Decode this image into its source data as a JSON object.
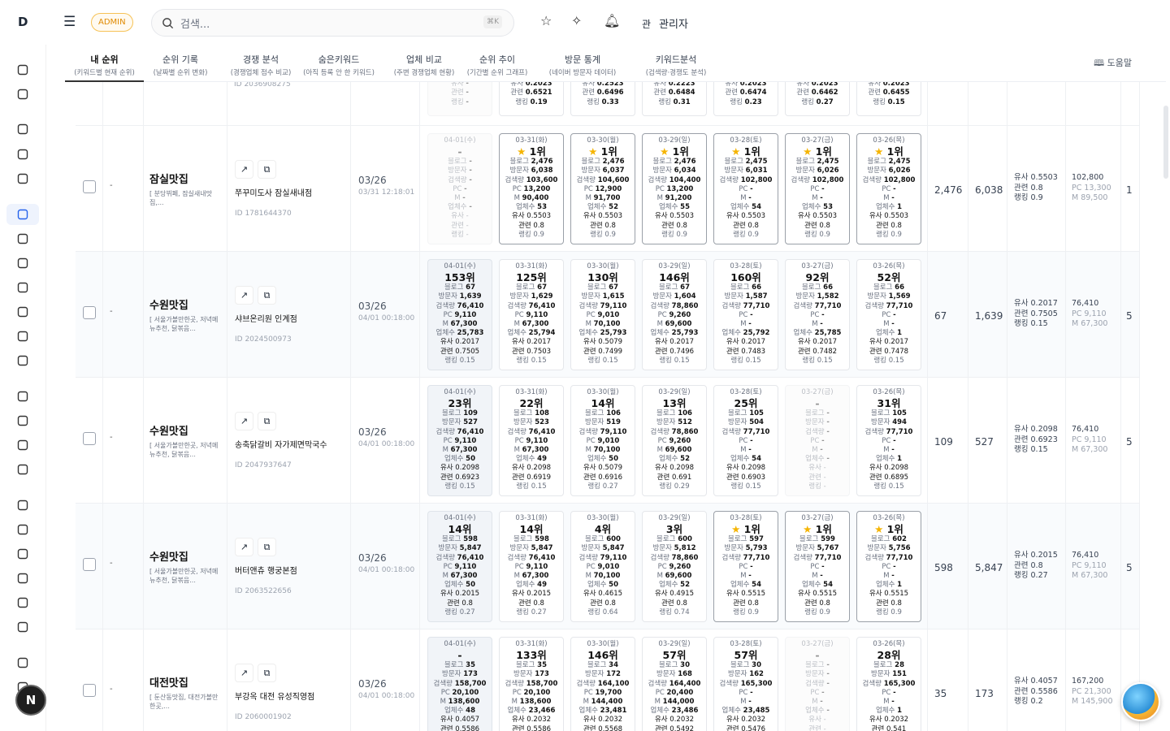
{
  "header": {
    "logo": "D",
    "badge": "ADMIN",
    "search_placeholder": "검색...",
    "shortcut": "⌘K",
    "user_initial": "관",
    "user_name": "관리자",
    "avatar": "N"
  },
  "sidebar_icons": [
    "grid-icon",
    "megaphone-icon",
    "map-check-icon",
    "cart-icon",
    "users-icon",
    "location-pin-icon",
    "document-icon",
    "cart-icon",
    "help-icon",
    "chat-icon",
    "globe-icon",
    "play-icon",
    "bar-chart-icon",
    "shuffle-icon",
    "search-icon",
    "folder-icon",
    "calendar-icon",
    "wallet-icon",
    "line-chart-icon",
    "layers-icon",
    "report-icon",
    "clipboard-icon",
    "scissors-icon",
    "image-icon"
  ],
  "tabs": [
    {
      "label": "내 순위",
      "sub": "(키워드별 현재 순위)"
    },
    {
      "label": "순위 기록",
      "sub": "(날짜별 순위 변화)"
    },
    {
      "label": "경쟁 분석",
      "sub": "(경쟁업체 점수 비교)"
    },
    {
      "label": "숨은키워드",
      "sub": "(아직 등록 안 한 키워드)"
    },
    {
      "label": "업체 비교",
      "sub": "(주변 경쟁업체 현황)"
    },
    {
      "label": "순위 추이",
      "sub": "(기간별 순위 그래프)"
    },
    {
      "label": "방문 통계",
      "sub": "(네이버 방문자 데이터)"
    },
    {
      "label": "키워드분석",
      "sub": "(검색량·경쟁도 분석)"
    }
  ],
  "help_label": "도움말",
  "labels": {
    "blog": "블로그",
    "visitors": "방문자",
    "search": "검색량",
    "pc": "PC",
    "m": "M",
    "biz": "업체수",
    "sim": "유사",
    "rel": "관련",
    "score": "랭킹"
  },
  "partial_row": {
    "place_id": "ID 2036908275",
    "cards": [
      [
        "-",
        "-",
        "-",
        "-"
      ],
      [
        "53",
        "0.2023",
        "0.6521",
        "0.19"
      ],
      [
        "52",
        "0.2523",
        "0.6496",
        "0.33"
      ],
      [
        "55",
        "0.2223",
        "0.6484",
        "0.31"
      ],
      [
        "54",
        "0.2023",
        "0.6474",
        "0.23"
      ],
      [
        "53",
        "0.2023",
        "0.6462",
        "0.27"
      ],
      [
        "1",
        "0.2023",
        "0.6455",
        "0.15"
      ]
    ]
  },
  "rows": [
    {
      "rank": "-",
      "keyword": "잠실맛집",
      "keyword_sub": "[ 분당뷔페, 잠실새내맛집,...",
      "place": "쭈꾸미도사 잠실새내점",
      "place_id": "ID 1781644370",
      "date": "03/26",
      "datetime": "03/31 12:18:01",
      "cards": [
        [
          "04-01(수)",
          "-",
          "-",
          "-",
          "-",
          "-",
          "-",
          "-",
          "-",
          "-",
          "-"
        ],
        [
          "03-31(화)",
          "1위",
          "2,476",
          "6,038",
          "103,600",
          "13,200",
          "90,400",
          "53",
          "0.5503",
          "0.8",
          "0.9"
        ],
        [
          "03-30(월)",
          "1위",
          "2,476",
          "6,037",
          "104,600",
          "12,900",
          "91,700",
          "52",
          "0.5503",
          "0.8",
          "0.9"
        ],
        [
          "03-29(일)",
          "1위",
          "2,476",
          "6,034",
          "104,400",
          "13,200",
          "91,200",
          "55",
          "0.5503",
          "0.8",
          "0.9"
        ],
        [
          "03-28(토)",
          "1위",
          "2,475",
          "6,031",
          "102,800",
          "-",
          "-",
          "54",
          "0.5503",
          "0.8",
          "0.9"
        ],
        [
          "03-27(금)",
          "1위",
          "2,475",
          "6,026",
          "102,800",
          "-",
          "-",
          "53",
          "0.5503",
          "0.8",
          "0.9"
        ],
        [
          "03-26(목)",
          "1위",
          "2,475",
          "6,026",
          "102,800",
          "-",
          "-",
          "1",
          "0.5503",
          "0.8",
          "0.9"
        ]
      ],
      "blog": "2,476",
      "visitors": "6,038",
      "sim": "0.5503",
      "rel": "0.8",
      "score": "0.9",
      "search": "102,800",
      "pc": "13,300",
      "m": "89,500",
      "last": "1"
    },
    {
      "rank": "-",
      "keyword": "수원맛집",
      "keyword_sub": "[ 서울가볼만한곳, 저녁메뉴추천, 닭볶음...",
      "place": "샤브온리원 인계점",
      "place_id": "ID 2024500973",
      "date": "03/26",
      "datetime": "04/01 00:18:00",
      "cards": [
        [
          "04-01(수)",
          "153위",
          "67",
          "1,639",
          "76,410",
          "9,110",
          "67,300",
          "25,783",
          "0.2017",
          "0.7505",
          "0.15"
        ],
        [
          "03-31(화)",
          "125위",
          "67",
          "1,629",
          "76,410",
          "9,110",
          "67,300",
          "25,794",
          "0.2017",
          "0.7503",
          "0.15"
        ],
        [
          "03-30(월)",
          "130위",
          "67",
          "1,615",
          "79,110",
          "9,010",
          "70,100",
          "25,793",
          "0.5079",
          "0.7499",
          "0.15"
        ],
        [
          "03-29(일)",
          "146위",
          "67",
          "1,604",
          "78,860",
          "9,260",
          "69,600",
          "25,793",
          "0.2017",
          "0.7496",
          "0.15"
        ],
        [
          "03-28(토)",
          "160위",
          "66",
          "1,587",
          "77,710",
          "-",
          "-",
          "25,792",
          "0.2017",
          "0.7483",
          "0.15"
        ],
        [
          "03-27(금)",
          "92위",
          "66",
          "1,582",
          "77,710",
          "-",
          "-",
          "25,785",
          "0.2017",
          "0.7482",
          "0.15"
        ],
        [
          "03-26(목)",
          "52위",
          "66",
          "1,569",
          "77,710",
          "-",
          "-",
          "1",
          "0.2017",
          "0.7478",
          "0.15"
        ]
      ],
      "blog": "67",
      "visitors": "1,639",
      "sim": "0.2017",
      "rel": "0.7505",
      "score": "0.15",
      "search": "76,410",
      "pc": "9,110",
      "m": "67,300",
      "last": "5"
    },
    {
      "rank": "-",
      "keyword": "수원맛집",
      "keyword_sub": "[ 서울가볼만한곳, 저녁메뉴추천, 닭볶음...",
      "place": "송축닭갈비 자가제면막국수",
      "place_id": "ID 2047937647",
      "date": "03/26",
      "datetime": "04/01 00:18:00",
      "cards": [
        [
          "04-01(수)",
          "23위",
          "109",
          "527",
          "76,410",
          "9,110",
          "67,300",
          "50",
          "0.2098",
          "0.6923",
          "0.15"
        ],
        [
          "03-31(화)",
          "22위",
          "108",
          "523",
          "76,410",
          "9,110",
          "67,300",
          "49",
          "0.2098",
          "0.6919",
          "0.15"
        ],
        [
          "03-30(월)",
          "14위",
          "106",
          "519",
          "79,110",
          "9,010",
          "70,100",
          "50",
          "0.5079",
          "0.6916",
          "0.27"
        ],
        [
          "03-29(일)",
          "13위",
          "106",
          "512",
          "78,860",
          "9,260",
          "69,600",
          "52",
          "0.2098",
          "0.691",
          "0.29"
        ],
        [
          "03-28(토)",
          "25위",
          "105",
          "504",
          "77,710",
          "-",
          "-",
          "54",
          "0.2098",
          "0.6903",
          "0.15"
        ],
        [
          "03-27(금)",
          "-",
          "-",
          "-",
          "-",
          "-",
          "-",
          "-",
          "-",
          "-",
          "-"
        ],
        [
          "03-26(목)",
          "31위",
          "105",
          "494",
          "77,710",
          "-",
          "-",
          "1",
          "0.2098",
          "0.6895",
          "0.15"
        ]
      ],
      "blog": "109",
      "visitors": "527",
      "sim": "0.2098",
      "rel": "0.6923",
      "score": "0.15",
      "search": "76,410",
      "pc": "9,110",
      "m": "67,300",
      "last": "5"
    },
    {
      "rank": "-",
      "keyword": "수원맛집",
      "keyword_sub": "[ 서울가볼만한곳, 저녁메뉴추천, 닭볶음...",
      "place": "버터앤츄 행궁본점",
      "place_id": "ID 2063522656",
      "date": "03/26",
      "datetime": "04/01 00:18:00",
      "cards": [
        [
          "04-01(수)",
          "14위",
          "598",
          "5,847",
          "76,410",
          "9,110",
          "67,300",
          "50",
          "0.2015",
          "0.8",
          "0.27"
        ],
        [
          "03-31(화)",
          "14위",
          "598",
          "5,847",
          "76,410",
          "9,110",
          "67,300",
          "49",
          "0.2015",
          "0.8",
          "0.27"
        ],
        [
          "03-30(월)",
          "4위",
          "600",
          "5,847",
          "79,110",
          "9,010",
          "70,100",
          "50",
          "0.4615",
          "0.8",
          "0.64"
        ],
        [
          "03-29(일)",
          "3위",
          "600",
          "5,812",
          "78,860",
          "9,260",
          "69,600",
          "52",
          "0.4915",
          "0.8",
          "0.74"
        ],
        [
          "03-28(토)",
          "1위",
          "597",
          "5,793",
          "77,710",
          "-",
          "-",
          "54",
          "0.5515",
          "0.8",
          "0.9"
        ],
        [
          "03-27(금)",
          "1위",
          "599",
          "5,767",
          "77,710",
          "-",
          "-",
          "54",
          "0.5515",
          "0.8",
          "0.9"
        ],
        [
          "03-26(목)",
          "1위",
          "602",
          "5,756",
          "77,710",
          "-",
          "-",
          "1",
          "0.5515",
          "0.8",
          "0.9"
        ]
      ],
      "blog": "598",
      "visitors": "5,847",
      "sim": "0.2015",
      "rel": "0.8",
      "score": "0.27",
      "search": "76,410",
      "pc": "9,110",
      "m": "67,300",
      "last": "5"
    },
    {
      "rank": "-",
      "keyword": "대전맛집",
      "keyword_sub": "[ 둔산동맛집, 대전가볼만한곳,...",
      "place": "부강옥 대전 유성직영점",
      "place_id": "ID 2060001902",
      "date": "03/26",
      "datetime": "04/01 00:18:00",
      "cards": [
        [
          "04-01(수)",
          "-",
          "35",
          "173",
          "158,700",
          "20,100",
          "138,600",
          "48",
          "0.4057",
          "0.5586",
          ""
        ],
        [
          "03-31(화)",
          "133위",
          "35",
          "173",
          "158,700",
          "20,100",
          "138,600",
          "23,466",
          "0.2032",
          "0.5586",
          ""
        ],
        [
          "03-30(월)",
          "146위",
          "34",
          "172",
          "164,100",
          "19,700",
          "144,400",
          "23,481",
          "0.2032",
          "0.5568",
          ""
        ],
        [
          "03-29(일)",
          "57위",
          "30",
          "168",
          "164,400",
          "20,400",
          "144,000",
          "23,486",
          "0.2032",
          "0.5492",
          ""
        ],
        [
          "03-28(토)",
          "57위",
          "30",
          "162",
          "165,300",
          "-",
          "-",
          "23,485",
          "0.2032",
          "0.5476",
          ""
        ],
        [
          "03-27(금)",
          "-",
          "-",
          "-",
          "-",
          "-",
          "-",
          "-",
          "-",
          "-",
          ""
        ],
        [
          "03-26(목)",
          "28위",
          "28",
          "151",
          "165,300",
          "-",
          "-",
          "1",
          "0.2032",
          "0.541",
          ""
        ]
      ],
      "blog": "35",
      "visitors": "173",
      "sim": "0.4057",
      "rel": "0.5586",
      "score": "0.2",
      "search": "167,200",
      "pc": "21,300",
      "m": "145,900",
      "last": ""
    }
  ],
  "colors": {
    "accent": "#2563eb",
    "admin_badge": "#e08a00",
    "star": "#f5b400"
  }
}
